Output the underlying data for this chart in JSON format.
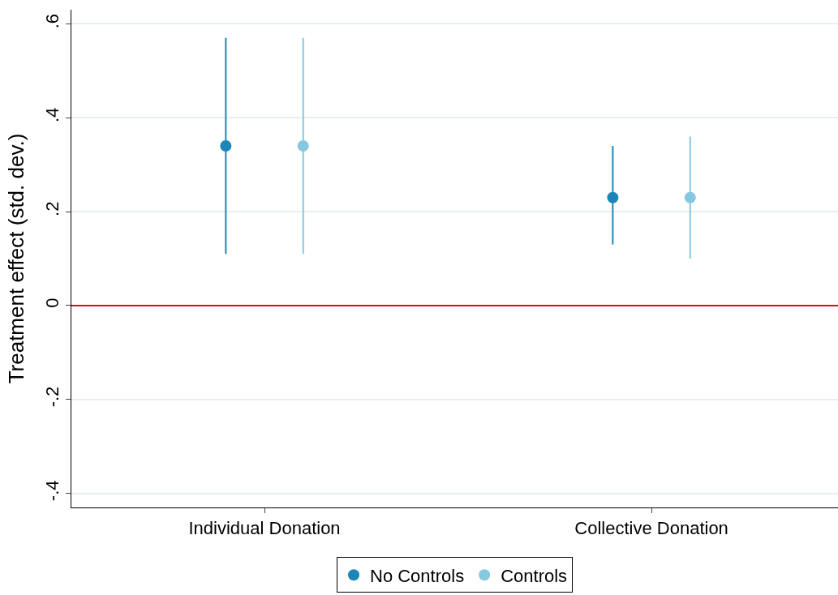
{
  "chart_data": {
    "type": "scatter",
    "ylabel": "Treatment effect (std. dev.)",
    "categories": [
      "Individual Donation",
      "Collective Donation"
    ],
    "series": [
      {
        "name": "No Controls",
        "color": "#1a87b8",
        "values": [
          0.34,
          0.23
        ],
        "errors": [
          [
            0.11,
            0.57
          ],
          [
            0.13,
            0.34
          ]
        ]
      },
      {
        "name": "Controls",
        "color": "#86c8e0",
        "values": [
          0.34,
          0.23
        ],
        "errors": [
          [
            0.11,
            0.57
          ],
          [
            0.1,
            0.36
          ]
        ]
      }
    ],
    "ylim": [
      -0.43,
      0.63
    ],
    "yticks": [
      {
        "value": -0.4,
        "label": "-.4"
      },
      {
        "value": -0.2,
        "label": "-.2"
      },
      0,
      {
        "value": 0.2,
        "label": ".2"
      },
      {
        "value": 0.4,
        "label": ".4"
      },
      {
        "value": 0.6,
        "label": ".6"
      }
    ],
    "ref_lines": [
      {
        "axis": "y",
        "value": 0,
        "color": "#c8102e"
      }
    ],
    "grid": "y",
    "legend": "bottom",
    "marker": "circle"
  }
}
